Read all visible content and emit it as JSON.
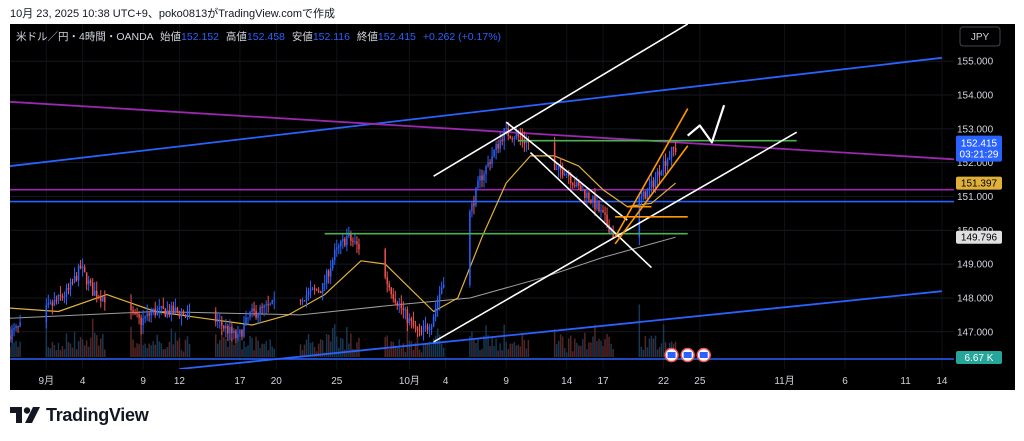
{
  "caption": "10月 23, 2025 10:38 UTC+9、poko0813がTradingView.comで作成",
  "brand": {
    "name": "TradingView",
    "icon": "tradingview-logo-icon"
  },
  "currency_button": "JPY",
  "legend": {
    "symbol": "米ドル／円・4時間・OANDA",
    "open_label": "始値",
    "open": "152.152",
    "high_label": "高値",
    "high": "152.458",
    "low_label": "安値",
    "low": "152.116",
    "close_label": "終値",
    "close": "152.415",
    "change": "+0.262 (+0.17%)"
  },
  "badges": {
    "last_price": "152.415",
    "countdown": "03:21:29",
    "ma_short": "151.397",
    "ma_long": "149.796",
    "volume": "6.67 K"
  },
  "colors": {
    "background": "#000000",
    "up": "#2962ff",
    "down": "#ef5350",
    "ma_short": "#e0b13a",
    "ma_long": "#9e9e9e",
    "blue_line": "#2962ff",
    "purple_line": "#9c27b0",
    "green_line": "#4caf50",
    "channel": "#ffffff",
    "orange": "#ff9800",
    "last_badge": "#2962ff",
    "volume_badge": "#26a69a"
  },
  "chart_data": {
    "type": "candlestick",
    "title": "米ドル／円・4時間・OANDA",
    "ylim": [
      145.9,
      156.1
    ],
    "yticks": [
      147.0,
      148.0,
      149.0,
      150.0,
      151.0,
      152.0,
      153.0,
      154.0,
      155.0
    ],
    "ytick_labels": [
      "147.000",
      "148.000",
      "149.000",
      "150.000",
      "151.000",
      "152.000",
      "153.000",
      "154.000",
      "155.000"
    ],
    "xlim": [
      "2025-08-29",
      "2025-11-15"
    ],
    "xticks": [
      {
        "date": "2025-09-01",
        "label": "9月"
      },
      {
        "date": "2025-09-04",
        "label": "4"
      },
      {
        "date": "2025-09-09",
        "label": "9"
      },
      {
        "date": "2025-09-12",
        "label": "12"
      },
      {
        "date": "2025-09-17",
        "label": "17"
      },
      {
        "date": "2025-09-20",
        "label": "20"
      },
      {
        "date": "2025-09-25",
        "label": "25"
      },
      {
        "date": "2025-10-01",
        "label": "10月"
      },
      {
        "date": "2025-10-04",
        "label": "4"
      },
      {
        "date": "2025-10-09",
        "label": "9"
      },
      {
        "date": "2025-10-14",
        "label": "14"
      },
      {
        "date": "2025-10-17",
        "label": "17"
      },
      {
        "date": "2025-10-22",
        "label": "22"
      },
      {
        "date": "2025-10-25",
        "label": "25"
      },
      {
        "date": "2025-11-01",
        "label": "11月"
      },
      {
        "date": "2025-11-06",
        "label": "6"
      },
      {
        "date": "2025-11-11",
        "label": "11"
      },
      {
        "date": "2025-11-14",
        "label": "14"
      }
    ],
    "price_path": [
      [
        "2025-08-29",
        146.9
      ],
      [
        "2025-09-01",
        147.6
      ],
      [
        "2025-09-03",
        148.2
      ],
      [
        "2025-09-04",
        148.9
      ],
      [
        "2025-09-05",
        148.2
      ],
      [
        "2025-09-07",
        147.8
      ],
      [
        "2025-09-09",
        147.3
      ],
      [
        "2025-09-10",
        147.6
      ],
      [
        "2025-09-12",
        147.6
      ],
      [
        "2025-09-14",
        147.3
      ],
      [
        "2025-09-15",
        147.4
      ],
      [
        "2025-09-17",
        146.8
      ],
      [
        "2025-09-18",
        147.5
      ],
      [
        "2025-09-20",
        147.8
      ],
      [
        "2025-09-22",
        148.0
      ],
      [
        "2025-09-24",
        148.3
      ],
      [
        "2025-09-25",
        149.3
      ],
      [
        "2025-09-26",
        149.8
      ],
      [
        "2025-09-27",
        149.5
      ],
      [
        "2025-09-29",
        148.7
      ],
      [
        "2025-09-30",
        148.0
      ],
      [
        "2025-10-01",
        147.4
      ],
      [
        "2025-10-02",
        146.9
      ],
      [
        "2025-10-03",
        147.3
      ],
      [
        "2025-10-05",
        149.8
      ],
      [
        "2025-10-06",
        150.3
      ],
      [
        "2025-10-07",
        151.5
      ],
      [
        "2025-10-08",
        152.2
      ],
      [
        "2025-10-09",
        152.9
      ],
      [
        "2025-10-10",
        152.8
      ],
      [
        "2025-10-11",
        152.6
      ],
      [
        "2025-10-12",
        151.9
      ],
      [
        "2025-10-13",
        151.7
      ],
      [
        "2025-10-14",
        151.8
      ],
      [
        "2025-10-15",
        151.3
      ],
      [
        "2025-10-16",
        151.0
      ],
      [
        "2025-10-17",
        150.5
      ],
      [
        "2025-10-18",
        149.9
      ],
      [
        "2025-10-19",
        150.6
      ],
      [
        "2025-10-20",
        150.8
      ],
      [
        "2025-10-21",
        151.2
      ],
      [
        "2025-10-22",
        151.9
      ],
      [
        "2025-10-23",
        152.4
      ]
    ],
    "ma_short_path": [
      [
        "2025-08-29",
        147.7
      ],
      [
        "2025-09-02",
        147.6
      ],
      [
        "2025-09-06",
        148.1
      ],
      [
        "2025-09-10",
        147.6
      ],
      [
        "2025-09-14",
        147.4
      ],
      [
        "2025-09-18",
        147.2
      ],
      [
        "2025-09-21",
        147.5
      ],
      [
        "2025-09-24",
        148.1
      ],
      [
        "2025-09-27",
        149.1
      ],
      [
        "2025-09-29",
        149.0
      ],
      [
        "2025-10-01",
        148.3
      ],
      [
        "2025-10-03",
        147.6
      ],
      [
        "2025-10-05",
        148.0
      ],
      [
        "2025-10-07",
        149.8
      ],
      [
        "2025-10-09",
        151.4
      ],
      [
        "2025-10-11",
        152.2
      ],
      [
        "2025-10-13",
        152.2
      ],
      [
        "2025-10-15",
        151.9
      ],
      [
        "2025-10-17",
        151.2
      ],
      [
        "2025-10-19",
        150.7
      ],
      [
        "2025-10-21",
        150.8
      ],
      [
        "2025-10-23",
        151.397
      ]
    ],
    "ma_long_path": [
      [
        "2025-08-29",
        147.4
      ],
      [
        "2025-09-10",
        147.6
      ],
      [
        "2025-09-22",
        147.5
      ],
      [
        "2025-09-30",
        147.8
      ],
      [
        "2025-10-06",
        148.0
      ],
      [
        "2025-10-12",
        148.6
      ],
      [
        "2025-10-17",
        149.2
      ],
      [
        "2025-10-21",
        149.6
      ],
      [
        "2025-10-23",
        149.796
      ]
    ],
    "volume": {
      "ylim": [
        0,
        6000
      ],
      "last": "6.67 K"
    },
    "drawings": [
      {
        "kind": "trendline",
        "color": "blue",
        "points": [
          [
            "2025-08-29",
            151.9
          ],
          [
            "2025-11-14",
            155.1
          ]
        ]
      },
      {
        "kind": "trendline",
        "color": "blue",
        "points": [
          [
            "2025-09-12",
            145.9
          ],
          [
            "2025-11-14",
            148.2
          ]
        ]
      },
      {
        "kind": "trendline",
        "color": "purple",
        "points": [
          [
            "2025-08-29",
            153.8
          ],
          [
            "2025-11-15",
            152.1
          ]
        ]
      },
      {
        "kind": "hline",
        "color": "purple",
        "price": 151.2,
        "start": "2025-08-29"
      },
      {
        "kind": "hline",
        "color": "blue",
        "price": 150.85,
        "start": "2025-08-29"
      },
      {
        "kind": "segment",
        "color": "green",
        "points": [
          [
            "2025-10-10",
            152.65
          ],
          [
            "2025-11-02",
            152.65
          ]
        ]
      },
      {
        "kind": "segment",
        "color": "green",
        "points": [
          [
            "2025-09-24",
            149.9
          ],
          [
            "2025-10-24",
            149.9
          ]
        ]
      },
      {
        "kind": "segment",
        "color": "white",
        "points": [
          [
            "2025-10-03",
            146.7
          ],
          [
            "2025-11-02",
            152.9
          ]
        ]
      },
      {
        "kind": "segment",
        "color": "white",
        "points": [
          [
            "2025-10-03",
            151.6
          ],
          [
            "2025-10-24",
            156.1
          ]
        ]
      },
      {
        "kind": "segment",
        "color": "white",
        "points": [
          [
            "2025-10-09",
            153.2
          ],
          [
            "2025-10-19",
            150.3
          ]
        ]
      },
      {
        "kind": "segment",
        "color": "white",
        "points": [
          [
            "2025-10-11",
            152.3
          ],
          [
            "2025-10-21",
            148.9
          ]
        ]
      },
      {
        "kind": "segment",
        "color": "orange",
        "points": [
          [
            "2025-10-18",
            149.8
          ],
          [
            "2025-10-24",
            153.6
          ]
        ]
      },
      {
        "kind": "segment",
        "color": "orange",
        "points": [
          [
            "2025-10-18",
            149.6
          ],
          [
            "2025-10-24",
            152.5
          ]
        ]
      },
      {
        "kind": "segment",
        "color": "orange",
        "points": [
          [
            "2025-10-18",
            150.4
          ],
          [
            "2025-10-24",
            150.4
          ]
        ]
      },
      {
        "kind": "segment",
        "color": "orange",
        "points": [
          [
            "2025-10-19",
            150.7
          ],
          [
            "2025-10-21",
            150.7
          ]
        ]
      },
      {
        "kind": "arrow",
        "color": "white",
        "points": [
          [
            "2025-10-24",
            152.8
          ],
          [
            "2025-10-25",
            153.1
          ],
          [
            "2025-10-26",
            152.6
          ],
          [
            "2025-10-27",
            153.7
          ]
        ]
      }
    ]
  }
}
